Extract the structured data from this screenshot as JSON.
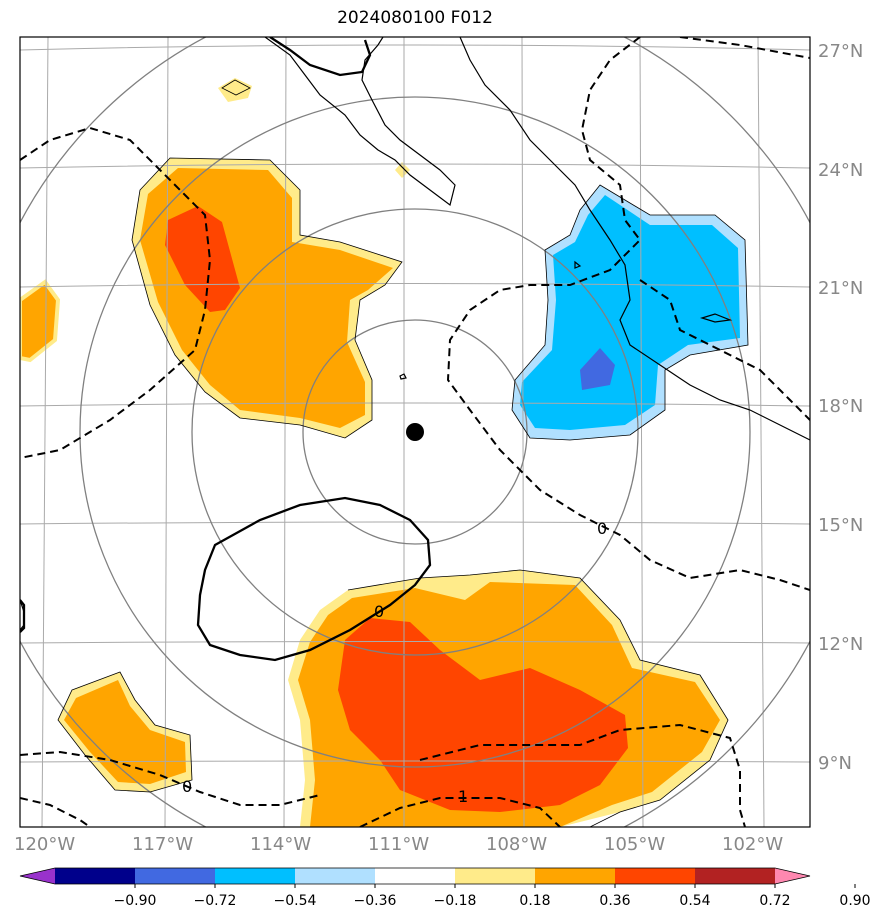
{
  "title": "2024080100 F012",
  "lat_labels": [
    "27°N",
    "24°N",
    "21°N",
    "18°N",
    "15°N",
    "12°N",
    "9°N"
  ],
  "lon_labels": [
    "120°W",
    "117°W",
    "114°W",
    "111°W",
    "108°W",
    "105°W",
    "102°W"
  ],
  "contour_labels": {
    "zero_top_right": "0",
    "zero_mid": "0",
    "zero_bottom_left": "0",
    "one_bottom": "1"
  },
  "colorbar": {
    "ticks": [
      "−0.90",
      "−0.72",
      "−0.54",
      "−0.36",
      "−0.18",
      "0.18",
      "0.36",
      "0.54",
      "0.72",
      "0.90"
    ],
    "colors": [
      "#9932cc",
      "#00008b",
      "#4169e1",
      "#00bfff",
      "#b0e0ff",
      "#ffffff",
      "#ffeb8a",
      "#ffa500",
      "#ff4500",
      "#b22222",
      "#ff88b0"
    ]
  },
  "colors": {
    "pos_light": "#ffeb8a",
    "pos_mid": "#ffa500",
    "pos_strong": "#ff4500",
    "neg_light": "#b0e0ff",
    "neg_mid": "#00bfff",
    "neg_strong": "#4169e1",
    "grid": "#aaaaaa",
    "range_ring": "#808080"
  },
  "storm_center_marker": "black-dot"
}
